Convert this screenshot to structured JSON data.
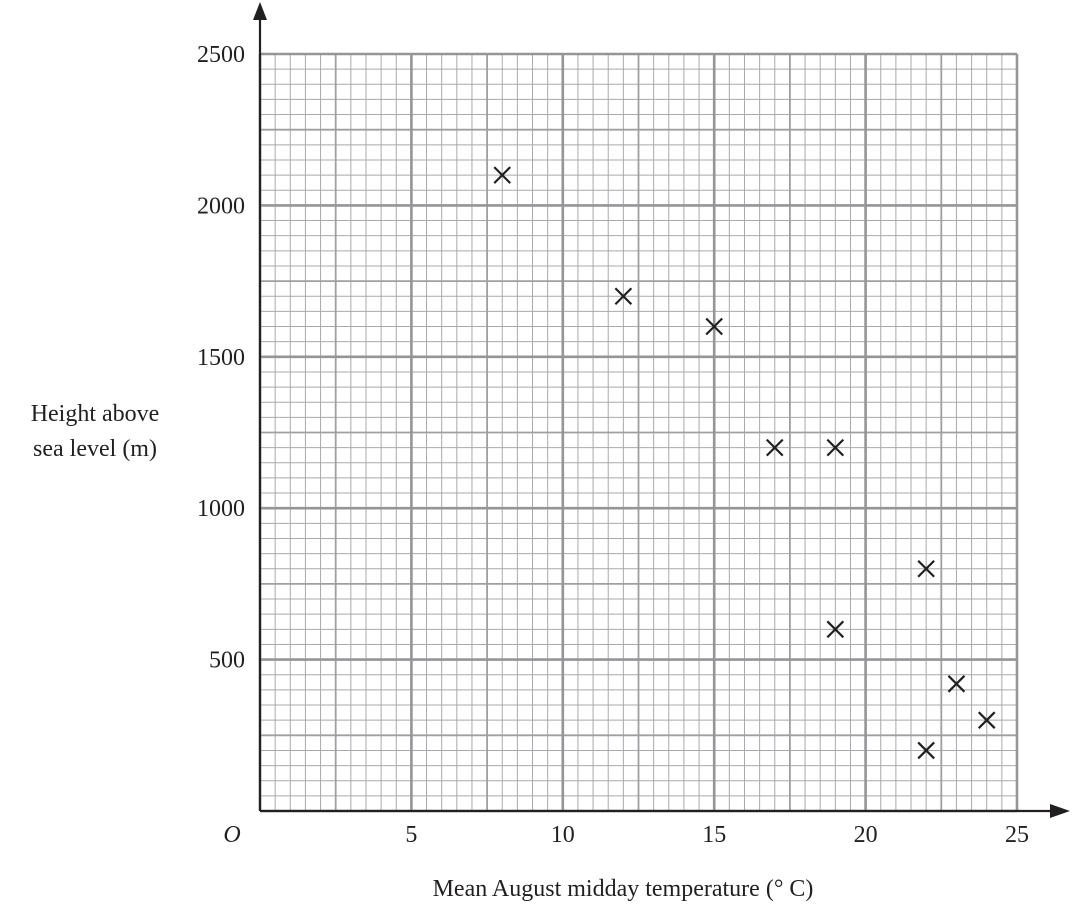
{
  "chart_data": {
    "type": "scatter",
    "title": "",
    "xlabel": "Mean August midday temperature (° C)",
    "ylabel_lines": [
      "Height above",
      "sea level (m)"
    ],
    "origin_label": "O",
    "xlim": [
      0,
      25
    ],
    "ylim": [
      0,
      2500
    ],
    "x_ticks": [
      5,
      10,
      15,
      20,
      25
    ],
    "y_ticks": [
      500,
      1000,
      1500,
      2000,
      2500
    ],
    "grid": true,
    "marker": "cross",
    "points": [
      {
        "x": 8,
        "y": 2100
      },
      {
        "x": 12,
        "y": 1700
      },
      {
        "x": 15,
        "y": 1600
      },
      {
        "x": 17,
        "y": 1200
      },
      {
        "x": 19,
        "y": 1200
      },
      {
        "x": 22,
        "y": 800
      },
      {
        "x": 19,
        "y": 600
      },
      {
        "x": 23,
        "y": 420
      },
      {
        "x": 24,
        "y": 300
      },
      {
        "x": 22,
        "y": 200
      }
    ]
  }
}
